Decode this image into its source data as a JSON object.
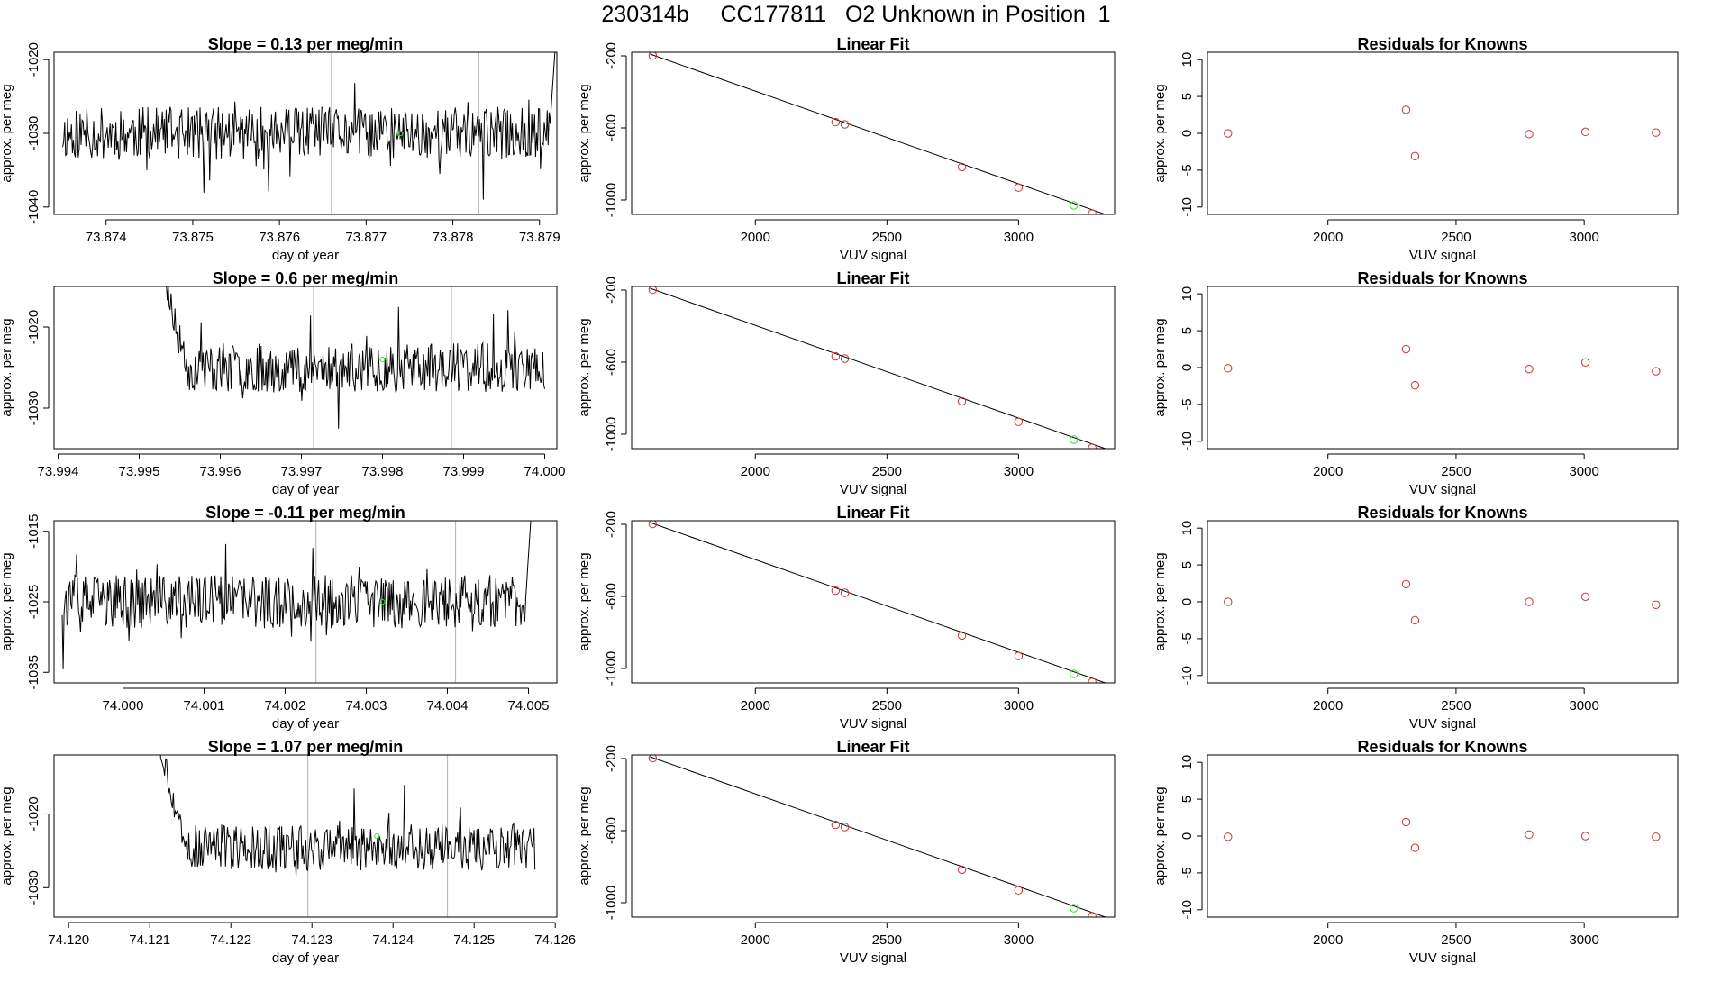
{
  "title": "230314b     CC177811   O2 Unknown in Position  1",
  "colors": {
    "line": "#000000",
    "known_point": "#cc3333",
    "unknown_point": "#33dd33",
    "marker_line": "#bbbbbb",
    "frame": "#000000"
  },
  "chart_data": [
    {
      "type": "line",
      "title": "Slope =  0.13  per meg/min",
      "xlabel": "day of year",
      "ylabel": "approx. per meg",
      "xlim": [
        73.8734,
        73.8792
      ],
      "ylim": [
        -1041,
        -1019
      ],
      "xticks": [
        "73.874",
        "73.875",
        "73.876",
        "73.877",
        "73.878",
        "73.879"
      ],
      "xtick_values": [
        73.874,
        73.875,
        73.876,
        73.877,
        73.878,
        73.879
      ],
      "yticks": [
        "-1040",
        "-1030",
        "-1020"
      ],
      "ytick_values": [
        -1040,
        -1030,
        -1020
      ],
      "vlines": [
        73.8766,
        73.8783
      ],
      "series_params": {
        "seed": 11,
        "x_start": 73.8735,
        "x_end": 73.8792,
        "mean": -1030,
        "amp": 3.6,
        "start_mode": "flat",
        "end_mode": "up_spike",
        "marker_x": 73.8774,
        "marker_y": -1030
      }
    },
    {
      "type": "scatter",
      "title": "Linear Fit",
      "xlabel": "VUV signal",
      "ylabel": "approx. per meg",
      "xlim": [
        1530,
        3365
      ],
      "ylim": [
        -1080,
        -180
      ],
      "xticks": [
        "2000",
        "2500",
        "3000"
      ],
      "xtick_values": [
        2000,
        2500,
        3000
      ],
      "yticks": [
        "-1000",
        "-600",
        "-200"
      ],
      "ytick_values": [
        -1000,
        -600,
        -200
      ],
      "fit_line": {
        "x": [
          1600,
          3330
        ],
        "y": [
          -190,
          -1080
        ]
      },
      "knowns": {
        "x": [
          1610,
          2305,
          2340,
          2785,
          3000,
          3280
        ],
        "y": [
          -198,
          -568,
          -580,
          -817,
          -931,
          -1075
        ]
      },
      "unknown": {
        "x": [
          3210
        ],
        "y": [
          -1030
        ]
      }
    },
    {
      "type": "scatter",
      "title": "Residuals for Knowns",
      "xlabel": "VUV signal",
      "ylabel": "approx. per meg",
      "xlim": [
        1530,
        3365
      ],
      "ylim": [
        -11,
        11
      ],
      "xticks": [
        "2000",
        "2500",
        "3000"
      ],
      "xtick_values": [
        2000,
        2500,
        3000
      ],
      "yticks": [
        "-10",
        "-5",
        "0",
        "5",
        "10"
      ],
      "ytick_values": [
        -10,
        -5,
        0,
        5,
        10
      ],
      "knowns": {
        "x": [
          1610,
          2305,
          2340,
          2785,
          3005,
          3280
        ],
        "y": [
          0,
          3.2,
          -3.1,
          -0.1,
          0.2,
          0.1
        ]
      }
    },
    {
      "type": "line",
      "title": "Slope =  0.6  per meg/min",
      "xlabel": "day of year",
      "ylabel": "approx. per meg",
      "xlim": [
        73.99395,
        74.00015
      ],
      "ylim": [
        -1035,
        -1015
      ],
      "xticks": [
        "73.994",
        "73.995",
        "73.996",
        "73.997",
        "73.998",
        "73.999",
        "74.000"
      ],
      "xtick_values": [
        73.994,
        73.995,
        73.996,
        73.997,
        73.998,
        73.999,
        74.0
      ],
      "yticks": [
        "-1030",
        "-1020"
      ],
      "ytick_values": [
        -1030,
        -1020
      ],
      "vlines": [
        73.99715,
        73.99885
      ],
      "series_params": {
        "seed": 23,
        "x_start": 73.99525,
        "x_end": 74.0,
        "mean": -1025,
        "amp": 3.0,
        "start_mode": "down_from_top",
        "end_mode": "flat",
        "marker_x": 73.998,
        "marker_y": -1024
      }
    },
    {
      "type": "scatter",
      "title": "Linear Fit",
      "xlabel": "VUV signal",
      "ylabel": "approx. per meg",
      "xlim": [
        1530,
        3365
      ],
      "ylim": [
        -1080,
        -180
      ],
      "xticks": [
        "2000",
        "2500",
        "3000"
      ],
      "xtick_values": [
        2000,
        2500,
        3000
      ],
      "yticks": [
        "-1000",
        "-600",
        "-200"
      ],
      "ytick_values": [
        -1000,
        -600,
        -200
      ],
      "fit_line": {
        "x": [
          1600,
          3330
        ],
        "y": [
          -190,
          -1080
        ]
      },
      "knowns": {
        "x": [
          1610,
          2305,
          2340,
          2785,
          3000,
          3280
        ],
        "y": [
          -198,
          -568,
          -580,
          -817,
          -931,
          -1075
        ]
      },
      "unknown": {
        "x": [
          3210
        ],
        "y": [
          -1030
        ]
      }
    },
    {
      "type": "scatter",
      "title": "Residuals for Knowns",
      "xlabel": "VUV signal",
      "ylabel": "approx. per meg",
      "xlim": [
        1530,
        3365
      ],
      "ylim": [
        -11,
        11
      ],
      "xticks": [
        "2000",
        "2500",
        "3000"
      ],
      "xtick_values": [
        2000,
        2500,
        3000
      ],
      "yticks": [
        "-10",
        "-5",
        "0",
        "5",
        "10"
      ],
      "ytick_values": [
        -10,
        -5,
        0,
        5,
        10
      ],
      "knowns": {
        "x": [
          1610,
          2305,
          2340,
          2785,
          3005,
          3280
        ],
        "y": [
          -0.1,
          2.5,
          -2.4,
          -0.2,
          0.7,
          -0.5
        ]
      }
    },
    {
      "type": "line",
      "title": "Slope =  -0.11  per meg/min",
      "xlabel": "day of year",
      "ylabel": "approx. per meg",
      "xlim": [
        73.99915,
        74.00535
      ],
      "ylim": [
        -1036.5,
        -1013.5
      ],
      "xticks": [
        "74.000",
        "74.001",
        "74.002",
        "74.003",
        "74.004",
        "74.005"
      ],
      "xtick_values": [
        74.0,
        74.001,
        74.002,
        74.003,
        74.004,
        74.005
      ],
      "yticks": [
        "-1035",
        "-1025",
        "-1015"
      ],
      "ytick_values": [
        -1035,
        -1025,
        -1015
      ],
      "vlines": [
        74.00238,
        74.0041
      ],
      "series_params": {
        "seed": 37,
        "x_start": 73.99925,
        "x_end": 74.00505,
        "mean": -1025,
        "amp": 3.8,
        "start_mode": "flat",
        "end_mode": "up_spike",
        "marker_x": 74.0032,
        "marker_y": -1025
      }
    },
    {
      "type": "scatter",
      "title": "Linear Fit",
      "xlabel": "VUV signal",
      "ylabel": "approx. per meg",
      "xlim": [
        1530,
        3365
      ],
      "ylim": [
        -1080,
        -180
      ],
      "xticks": [
        "2000",
        "2500",
        "3000"
      ],
      "xtick_values": [
        2000,
        2500,
        3000
      ],
      "yticks": [
        "-1000",
        "-600",
        "-200"
      ],
      "ytick_values": [
        -1000,
        -600,
        -200
      ],
      "fit_line": {
        "x": [
          1600,
          3330
        ],
        "y": [
          -190,
          -1080
        ]
      },
      "knowns": {
        "x": [
          1610,
          2305,
          2340,
          2785,
          3000,
          3280
        ],
        "y": [
          -198,
          -568,
          -580,
          -817,
          -931,
          -1075
        ]
      },
      "unknown": {
        "x": [
          3210
        ],
        "y": [
          -1030
        ]
      }
    },
    {
      "type": "scatter",
      "title": "Residuals for Knowns",
      "xlabel": "VUV signal",
      "ylabel": "approx. per meg",
      "xlim": [
        1530,
        3365
      ],
      "ylim": [
        -11,
        11
      ],
      "xticks": [
        "2000",
        "2500",
        "3000"
      ],
      "xtick_values": [
        2000,
        2500,
        3000
      ],
      "yticks": [
        "-10",
        "-5",
        "0",
        "5",
        "10"
      ],
      "ytick_values": [
        -10,
        -5,
        0,
        5,
        10
      ],
      "knowns": {
        "x": [
          1610,
          2305,
          2340,
          2785,
          3005,
          3280
        ],
        "y": [
          0,
          2.4,
          -2.5,
          0,
          0.7,
          -0.4
        ]
      }
    },
    {
      "type": "line",
      "title": "Slope =  1.07  per meg/min",
      "xlabel": "day of year",
      "ylabel": "approx. per meg",
      "xlim": [
        74.11982,
        74.12602
      ],
      "ylim": [
        -1034,
        -1012
      ],
      "xticks": [
        "74.120",
        "74.121",
        "74.122",
        "74.123",
        "74.124",
        "74.125",
        "74.126"
      ],
      "xtick_values": [
        74.12,
        74.121,
        74.122,
        74.123,
        74.124,
        74.125,
        74.126
      ],
      "yticks": [
        "-1030",
        "-1020"
      ],
      "ytick_values": [
        -1030,
        -1020
      ],
      "vlines": [
        74.12295,
        74.12467
      ],
      "series_params": {
        "seed": 53,
        "x_start": 74.1211,
        "x_end": 74.12575,
        "mean": -1024.5,
        "amp": 3.2,
        "start_mode": "down_from_top",
        "end_mode": "flat",
        "marker_x": 74.1238,
        "marker_y": -1023
      }
    },
    {
      "type": "scatter",
      "title": "Linear Fit",
      "xlabel": "VUV signal",
      "ylabel": "approx. per meg",
      "xlim": [
        1530,
        3365
      ],
      "ylim": [
        -1080,
        -180
      ],
      "xticks": [
        "2000",
        "2500",
        "3000"
      ],
      "xtick_values": [
        2000,
        2500,
        3000
      ],
      "yticks": [
        "-1000",
        "-600",
        "-200"
      ],
      "ytick_values": [
        -1000,
        -600,
        -200
      ],
      "fit_line": {
        "x": [
          1600,
          3330
        ],
        "y": [
          -190,
          -1080
        ]
      },
      "knowns": {
        "x": [
          1610,
          2305,
          2340,
          2785,
          3000,
          3280
        ],
        "y": [
          -198,
          -568,
          -580,
          -817,
          -931,
          -1075
        ]
      },
      "unknown": {
        "x": [
          3210
        ],
        "y": [
          -1030
        ]
      }
    },
    {
      "type": "scatter",
      "title": "Residuals for Knowns",
      "xlabel": "VUV signal",
      "ylabel": "approx. per meg",
      "xlim": [
        1530,
        3365
      ],
      "ylim": [
        -11,
        11
      ],
      "xticks": [
        "2000",
        "2500",
        "3000"
      ],
      "xtick_values": [
        2000,
        2500,
        3000
      ],
      "yticks": [
        "-10",
        "-5",
        "0",
        "5",
        "10"
      ],
      "ytick_values": [
        -10,
        -5,
        0,
        5,
        10
      ],
      "knowns": {
        "x": [
          1610,
          2305,
          2340,
          2785,
          3005,
          3280
        ],
        "y": [
          -0.1,
          1.9,
          -1.6,
          0.2,
          0,
          -0.1
        ]
      }
    }
  ]
}
